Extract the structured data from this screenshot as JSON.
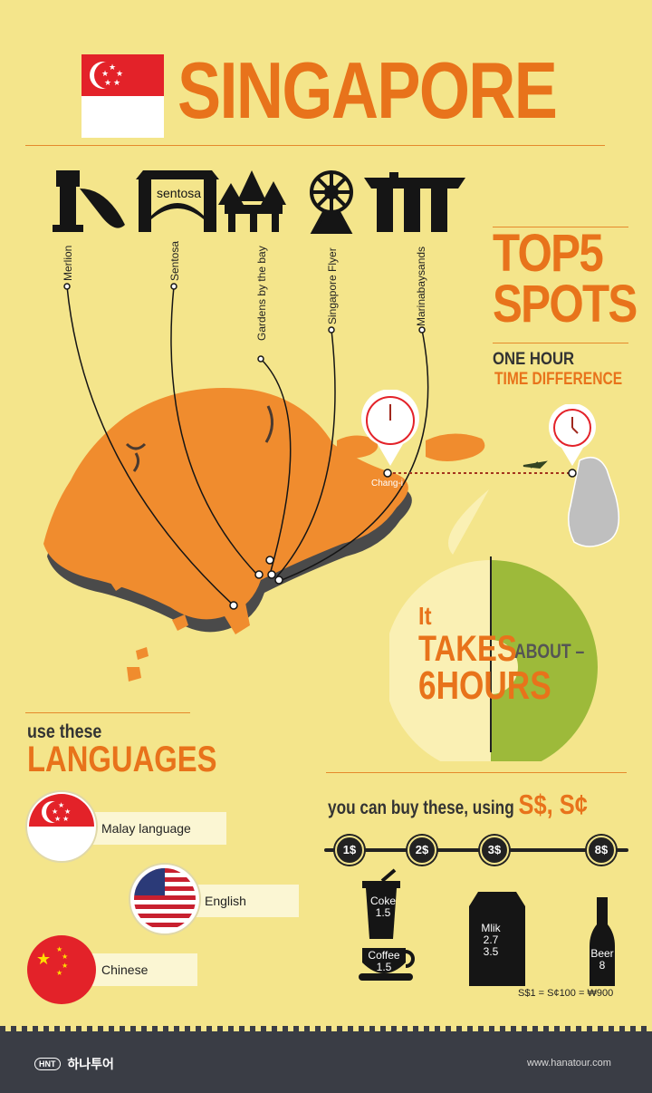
{
  "header": {
    "title": "SINGAPORE"
  },
  "spots": {
    "heading_line1": "TOP5",
    "heading_line2": "SPOTS",
    "items": [
      {
        "label": "Merlion"
      },
      {
        "label": "Sentosa",
        "sign": "sentosa"
      },
      {
        "label": "Gardens by the bay"
      },
      {
        "label": "Singapore Flyer"
      },
      {
        "label": "Marinabaysands"
      }
    ]
  },
  "time": {
    "one_hour": "ONE HOUR",
    "difference": "TIME DIFFERENCE",
    "airport": "Chang-i"
  },
  "flight": {
    "it": "It",
    "takes": "TAKES",
    "about": "ABOUT –",
    "hours": "6HOURS"
  },
  "languages": {
    "use_these": "use these",
    "heading": "LANGUAGES",
    "items": [
      {
        "label": "Malay language",
        "flag": "singapore-flag"
      },
      {
        "label": "English",
        "flag": "usa-flag"
      },
      {
        "label": "Chinese",
        "flag": "china-flag"
      }
    ]
  },
  "currency": {
    "intro": "you can buy these, using",
    "symbols": "S$, S¢",
    "prices": [
      "1$",
      "2$",
      "3$",
      "8$"
    ],
    "items": [
      {
        "name": "Coke",
        "price": "1.5"
      },
      {
        "name": "Coffee",
        "price": "1.5"
      },
      {
        "name": "Mlik",
        "price_1": "2.7",
        "price_2": "3.5"
      },
      {
        "name": "Beer",
        "price": "8"
      }
    ],
    "rate": "S$1 = S¢100 = ₩900"
  },
  "footer": {
    "logo": "HNT",
    "brand": "하나투어",
    "url": "www.hanatour.com"
  },
  "colors": {
    "orange": "#e8731b",
    "green": "#9dba3a",
    "background": "#f4e58b",
    "dark": "#222222"
  }
}
